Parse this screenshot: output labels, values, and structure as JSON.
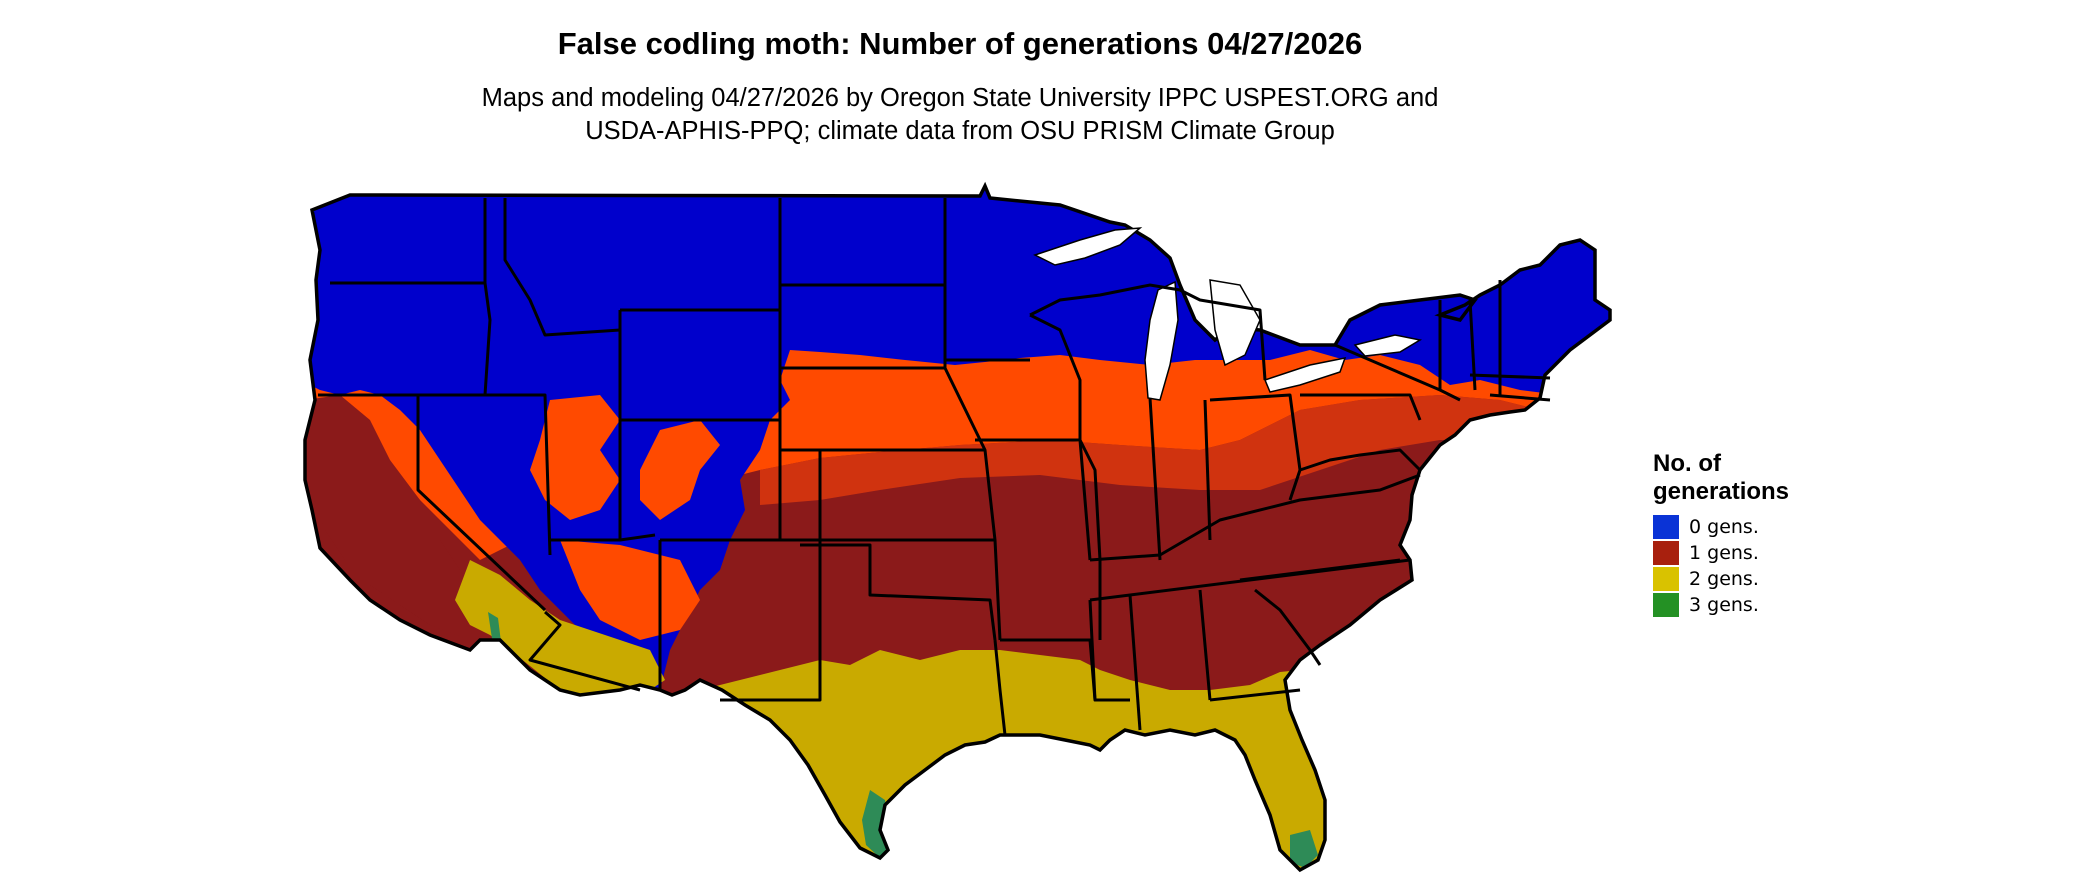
{
  "title": "False codling moth: Number of generations 04/27/2026",
  "subtitle_line1": "Maps and modeling 04/27/2026 by Oregon State University IPPC USPEST.ORG and",
  "subtitle_line2": "USDA-APHIS-PPQ; climate data from OSU PRISM Climate Group",
  "legend": {
    "title_line1": "No. of",
    "title_line2": "generations",
    "items": [
      {
        "label": "0 gens.",
        "color": "#0a33d6"
      },
      {
        "label": "1 gens.",
        "color": "#a8200e"
      },
      {
        "label": "2 gens.",
        "color": "#d9c200"
      },
      {
        "label": "3 gens.",
        "color": "#249124"
      }
    ]
  },
  "map_colors": {
    "zero": "#0000cc",
    "transition": "#ff4a00",
    "transition_dark": "#e13a0c",
    "one": "#8b1a1a",
    "two": "#c9aa00",
    "three": "#2e8b57",
    "border": "#000000"
  }
}
